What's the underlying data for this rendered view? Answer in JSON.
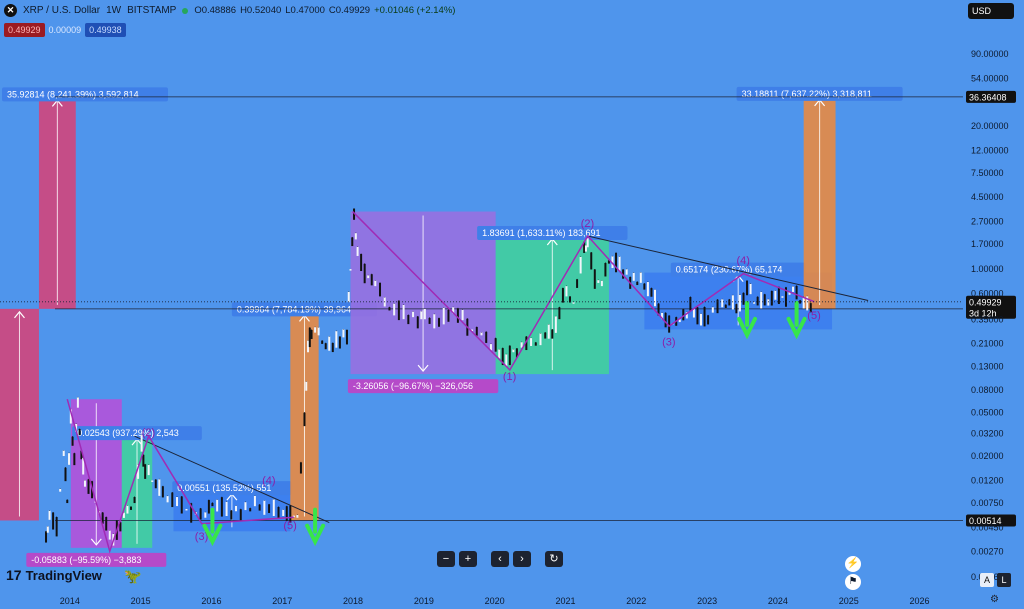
{
  "header": {
    "symbol_icon": "xrp-logo-icon",
    "symbol": "XRP / U.S. Dollar",
    "interval": "1W",
    "exchange": "BITSTAMP",
    "open": "O0.48886",
    "high": "H0.52040",
    "low": "L0.47000",
    "close": "C0.49929",
    "change": "+0.01046 (+2.14%)",
    "sell_price": "0.49929",
    "spread": "0.00009",
    "buy_price": "0.49938",
    "currency": "USD"
  },
  "chart_data": {
    "type": "line",
    "y_scale": "log",
    "ylim": [
      0.0012,
      130
    ],
    "xlim": [
      2013.0,
      2026.6
    ],
    "x_ticks": [
      "2014",
      "2015",
      "2016",
      "2017",
      "2018",
      "2019",
      "2020",
      "2021",
      "2022",
      "2023",
      "2024",
      "2025",
      "2026"
    ],
    "y_ticks": [
      "90.00000",
      "54.00000",
      "36.36408",
      "20.00000",
      "12.00000",
      "7.50000",
      "4.50000",
      "2.70000",
      "1.70000",
      "1.00000",
      "0.60000",
      "0.49929",
      "0.35000",
      "0.21000",
      "0.13000",
      "0.08000",
      "0.05000",
      "0.03200",
      "0.02000",
      "0.01200",
      "0.00750",
      "0.00514",
      "0.00450",
      "0.00270",
      "0.00160"
    ],
    "price_label": "0.49929",
    "countdown": "3d 12h",
    "hlines": [
      {
        "value": 36.36408,
        "label": "36.36408"
      },
      {
        "value": 0.00514,
        "label": "0.00514"
      },
      {
        "value": 0.43082,
        "label": ""
      }
    ],
    "price_path": [
      [
        2013.65,
        0.0035
      ],
      [
        2013.7,
        0.006
      ],
      [
        2013.8,
        0.0045
      ],
      [
        2013.9,
        0.02
      ],
      [
        2013.95,
        0.008
      ],
      [
        2014.0,
        0.045
      ],
      [
        2014.05,
        0.02
      ],
      [
        2014.1,
        0.055
      ],
      [
        2014.15,
        0.02
      ],
      [
        2014.2,
        0.012
      ],
      [
        2014.3,
        0.01
      ],
      [
        2014.4,
        0.006
      ],
      [
        2014.5,
        0.0045
      ],
      [
        2014.6,
        0.0035
      ],
      [
        2014.7,
        0.005
      ],
      [
        2014.8,
        0.006
      ],
      [
        2014.9,
        0.008
      ],
      [
        2015.0,
        0.025
      ],
      [
        2015.05,
        0.015
      ],
      [
        2015.15,
        0.012
      ],
      [
        2015.3,
        0.009
      ],
      [
        2015.5,
        0.008
      ],
      [
        2015.7,
        0.006
      ],
      [
        2015.9,
        0.0055
      ],
      [
        2016.0,
        0.0075
      ],
      [
        2016.2,
        0.0065
      ],
      [
        2016.4,
        0.0062
      ],
      [
        2016.6,
        0.007
      ],
      [
        2016.8,
        0.0065
      ],
      [
        2017.0,
        0.0065
      ],
      [
        2017.1,
        0.006
      ],
      [
        2017.2,
        0.0055
      ],
      [
        2017.3,
        0.04
      ],
      [
        2017.35,
        0.2
      ],
      [
        2017.4,
        0.28
      ],
      [
        2017.5,
        0.25
      ],
      [
        2017.6,
        0.2
      ],
      [
        2017.75,
        0.22
      ],
      [
        2017.9,
        0.25
      ],
      [
        2017.95,
        1.0
      ],
      [
        2018.0,
        3.0
      ],
      [
        2018.05,
        1.5
      ],
      [
        2018.15,
        0.9
      ],
      [
        2018.3,
        0.7
      ],
      [
        2018.5,
        0.45
      ],
      [
        2018.7,
        0.4
      ],
      [
        2018.9,
        0.35
      ],
      [
        2019.0,
        0.35
      ],
      [
        2019.2,
        0.32
      ],
      [
        2019.4,
        0.45
      ],
      [
        2019.6,
        0.3
      ],
      [
        2019.8,
        0.25
      ],
      [
        2020.0,
        0.19
      ],
      [
        2020.15,
        0.15
      ],
      [
        2020.3,
        0.19
      ],
      [
        2020.5,
        0.2
      ],
      [
        2020.7,
        0.25
      ],
      [
        2020.85,
        0.3
      ],
      [
        2020.95,
        0.6
      ],
      [
        2021.1,
        0.5
      ],
      [
        2021.25,
        1.5
      ],
      [
        2021.3,
        1.8
      ],
      [
        2021.4,
        0.8
      ],
      [
        2021.5,
        0.7
      ],
      [
        2021.6,
        1.2
      ],
      [
        2021.75,
        1.1
      ],
      [
        2021.9,
        0.8
      ],
      [
        2022.05,
        0.75
      ],
      [
        2022.2,
        0.6
      ],
      [
        2022.35,
        0.4
      ],
      [
        2022.45,
        0.32
      ],
      [
        2022.6,
        0.33
      ],
      [
        2022.75,
        0.45
      ],
      [
        2022.9,
        0.35
      ],
      [
        2023.0,
        0.38
      ],
      [
        2023.2,
        0.45
      ],
      [
        2023.3,
        0.5
      ],
      [
        2023.45,
        0.47
      ],
      [
        2023.55,
        0.7
      ],
      [
        2023.65,
        0.5
      ],
      [
        2023.8,
        0.5
      ],
      [
        2023.95,
        0.6
      ],
      [
        2024.1,
        0.55
      ],
      [
        2024.2,
        0.62
      ],
      [
        2024.3,
        0.52
      ],
      [
        2024.4,
        0.48
      ],
      [
        2024.5,
        0.5
      ]
    ],
    "zigzags": [
      [
        [
          2013.95,
          0.065
        ],
        [
          2014.55,
          0.0027
        ],
        [
          2015.1,
          0.03
        ],
        [
          2015.85,
          0.0048
        ],
        [
          2017.15,
          0.0055
        ]
      ],
      [
        [
          2017.98,
          3.3
        ],
        [
          2020.2,
          0.12
        ],
        [
          2021.3,
          1.98
        ],
        [
          2022.45,
          0.3
        ],
        [
          2023.5,
          0.9
        ],
        [
          2024.5,
          0.5
        ]
      ]
    ],
    "trendlines": [
      [
        [
          2014.9,
          0.03
        ],
        [
          2017.4,
          0.0058
        ]
      ],
      [
        [
          2021.3,
          1.98
        ],
        [
          2024.9,
          0.58
        ]
      ]
    ],
    "boxes": [
      {
        "x0": 2013.0,
        "x1": 2013.55,
        "y0": 0.00514,
        "y1": 0.43082,
        "color": "#d94175",
        "label": "",
        "dir": "up"
      },
      {
        "x0": 2013.55,
        "x1": 2014.07,
        "y0": 0.43082,
        "y1": 36.0,
        "color": "#d94175",
        "label": "35.92814 (8,241.39%) 3,592,814",
        "dir": "up"
      },
      {
        "x0": 2014.0,
        "x1": 2014.72,
        "y0": 0.0029,
        "y1": 0.065,
        "color": "#b84fd9",
        "label": "-0.05883 (−95.59%) −3,883",
        "dir": "down"
      },
      {
        "x0": 2014.72,
        "x1": 2015.15,
        "y0": 0.0029,
        "y1": 0.03,
        "color": "#3fd39a",
        "label": "0.02543 (937.29%) 2,543",
        "dir": "up"
      },
      {
        "x0": 2015.45,
        "x1": 2017.1,
        "y0": 0.0041,
        "y1": 0.0095,
        "color": "#3a7df0",
        "label": "0.00551 (135.52%) 551",
        "dir": "up"
      },
      {
        "x0": 2017.1,
        "x1": 2017.5,
        "y0": 0.00514,
        "y1": 0.4,
        "color": "#f08a3a",
        "label": "0.39964 (7,784.19%) 39,964",
        "dir": "up"
      },
      {
        "x0": 2017.95,
        "x1": 2020.0,
        "y0": 0.11,
        "y1": 3.3,
        "color": "#9b6ee0",
        "label": "-3.26056 (−96.67%) −326,056",
        "dir": "down"
      },
      {
        "x0": 2020.0,
        "x1": 2021.6,
        "y0": 0.11,
        "y1": 1.98,
        "color": "#3fd39a",
        "label": "1.83691 (1,633.11%) 183,691",
        "dir": "up"
      },
      {
        "x0": 2022.1,
        "x1": 2024.75,
        "y0": 0.28,
        "y1": 0.92,
        "color": "#3a7df0",
        "label": "0.65174 (230.67%) 65,174",
        "dir": "up"
      },
      {
        "x0": 2024.35,
        "x1": 2024.8,
        "y0": 0.43,
        "y1": 36.36408,
        "color": "#f08a3a",
        "label": "33.18811 (7,637.22%) 3,318,811",
        "dir": "up"
      }
    ],
    "wave_labels": [
      {
        "x": 2015.1,
        "y": 0.03,
        "text": "(2)"
      },
      {
        "x": 2015.85,
        "y": 0.0034,
        "text": "(3)"
      },
      {
        "x": 2016.8,
        "y": 0.011,
        "text": "(4)"
      },
      {
        "x": 2017.1,
        "y": 0.0043,
        "text": "(5)"
      },
      {
        "x": 2020.2,
        "y": 0.097,
        "text": "(1)"
      },
      {
        "x": 2021.3,
        "y": 2.4,
        "text": "(2)"
      },
      {
        "x": 2022.45,
        "y": 0.2,
        "text": "(3)"
      },
      {
        "x": 2023.5,
        "y": 1.1,
        "text": "(4)"
      },
      {
        "x": 2024.5,
        "y": 0.35,
        "text": "(5)"
      }
    ],
    "arrows": [
      [
        2016.0,
        0.0033
      ],
      [
        2017.45,
        0.0033
      ],
      [
        2023.55,
        0.25
      ],
      [
        2024.25,
        0.25
      ]
    ]
  },
  "controls": {
    "zoom_out": "−",
    "zoom_in": "+",
    "scroll_left": "‹",
    "scroll_right": "›",
    "reset": "↻"
  },
  "branding": {
    "name": "TradingView",
    "icon": "tradingview-logo-icon"
  },
  "corner": {
    "auto": "A",
    "log": "L"
  }
}
